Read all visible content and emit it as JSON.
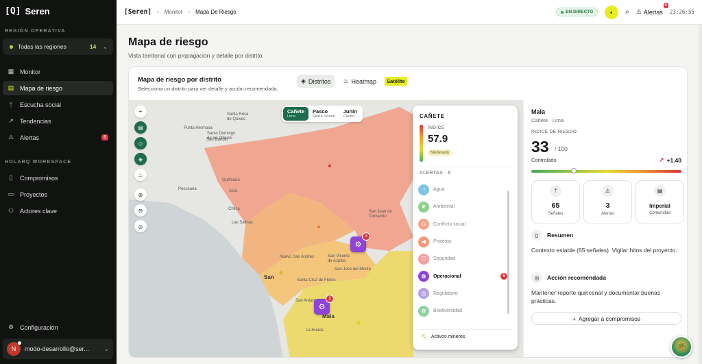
{
  "app": {
    "logo_mark": "[Q]",
    "name": "Seren"
  },
  "sidebar": {
    "region_section": "REGIÓN OPERATIVA",
    "region": {
      "label": "Todas las regiones",
      "count": "14"
    },
    "nav": [
      {
        "label": "Monitor",
        "icon": "grid-icon"
      },
      {
        "label": "Mapa de riesgo",
        "icon": "map-icon",
        "active": true
      },
      {
        "label": "Escucha social",
        "icon": "antenna-icon"
      },
      {
        "label": "Tendencias",
        "icon": "trend-icon"
      },
      {
        "label": "Alertas",
        "icon": "warning-icon",
        "badge": "6"
      }
    ],
    "workspace_section": "HOLARQ WORKSPACE",
    "workspace": [
      {
        "label": "Compromisos",
        "icon": "document-icon"
      },
      {
        "label": "Proyectos",
        "icon": "folder-icon"
      },
      {
        "label": "Actores clave",
        "icon": "users-icon"
      }
    ],
    "settings_label": "Configuración",
    "user": {
      "initial": "N",
      "name": "modo-desarrollo@ser..."
    }
  },
  "topbar": {
    "brand": "[Seren]",
    "crumbs": [
      "Monitor",
      "Mapa De Riesgo"
    ],
    "live_label": "EN DIRECTO",
    "alerts_label": "Alertas",
    "alerts_count": "6",
    "clock": "23:26:55"
  },
  "page": {
    "title": "Mapa de riesgo",
    "subtitle": "Vista territorial con propagacion y detalle por distrito."
  },
  "card": {
    "title": "Mapa de riesgo por distrito",
    "subtitle": "Selecciona un distrito para ver detalle y acción recomendada.",
    "tabs": {
      "districts": "Distritos",
      "heatmap": "Heatmap",
      "satellite": "Satélite"
    }
  },
  "map": {
    "provinces": [
      {
        "name": "Cañete",
        "sub": "Lima",
        "active": true
      },
      {
        "name": "Pasco",
        "sub": "Sierra central"
      },
      {
        "name": "Junín",
        "sub": "Centro"
      }
    ],
    "labels": {
      "santa_rosa": "Santa Rosa\nde Quives",
      "punta_hermosa": "Punta Hermosa",
      "santo_domingo": "Santo Domingo\nde los Olleros",
      "san_bartolo": "San Bartolo",
      "pucusana": "Pucusana",
      "quilmana": "Quilmaná",
      "asia": "Asia",
      "chilca": "Chilca",
      "las_salinas": "Las Salinas",
      "san_juan": "San Juan de\nConvento",
      "nuevo_san_andres": "Nuevo San Andrés",
      "san_vicente": "San Vicente\nde Azpitia",
      "san_jose": "San José del Monte",
      "santa_cruz": "Santa Cruz de Flores",
      "san_antonio": "San Antonio",
      "san": "San",
      "mala": "Mala",
      "la_huaca": "La Huaca"
    },
    "clusters": [
      {
        "count": "3"
      },
      {
        "count": "2"
      }
    ],
    "panel": {
      "title": "CAÑETE",
      "index_label": "ÍNDICE",
      "index_value": "57.9",
      "index_tag": "Moderado",
      "alerts_heading": "ALERTAS · 6",
      "alert_types": [
        {
          "label": "Agua",
          "color": "#7fc4e8"
        },
        {
          "label": "Ambiental",
          "color": "#8fd08a"
        },
        {
          "label": "Conflicto social",
          "color": "#f3a58a"
        },
        {
          "label": "Protesta",
          "color": "#f09a7a"
        },
        {
          "label": "Seguridad",
          "color": "#f2a0a0"
        },
        {
          "label": "Operacional",
          "color": "#8e44d6",
          "active": true,
          "badge": "6"
        },
        {
          "label": "Regulatorio",
          "color": "#b6a3e6"
        },
        {
          "label": "Biodiversidad",
          "color": "#8fd0a4"
        }
      ],
      "mining_label": "Activos mineros"
    }
  },
  "detail": {
    "name": "Mala",
    "location": "Cañete · Lima",
    "index_label": "ÍNDICE DE RIESGO",
    "score": "33",
    "max": "/ 100",
    "status": "Controlado",
    "trend": "+1.40",
    "stats": [
      {
        "value": "65",
        "label": "Señales",
        "icon": "antenna-icon"
      },
      {
        "value": "3",
        "label": "Alertas",
        "icon": "warning-icon"
      },
      {
        "value": "Imperial",
        "label": "Comunidad",
        "icon": "map-icon"
      }
    ],
    "summary_title": "Resumen",
    "summary_text": "Contexto estable (65 señales). Vigilar hitos del proyecto.",
    "action_title": "Acción recomendada",
    "action_text": "Mantener reporte quincenal y documentar buenas prácticas.",
    "add_button": "Agregar a compromisos"
  }
}
